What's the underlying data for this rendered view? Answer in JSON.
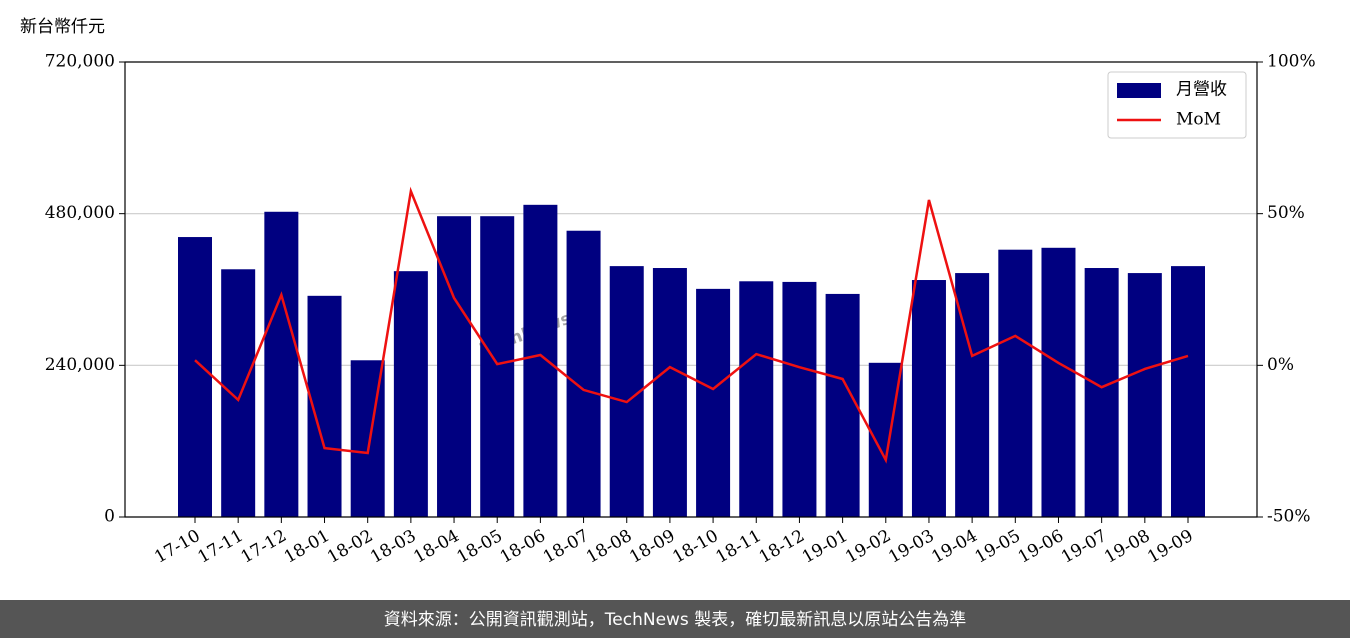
{
  "chart_data": {
    "type": "bar-line",
    "y_label": "新台幣仟元",
    "watermark": "TechNews",
    "footer": "資料來源：公開資訊觀測站，TechNews 製表，確切最新訊息以原站公告為準",
    "categories": [
      "17-10",
      "17-11",
      "17-12",
      "18-01",
      "18-02",
      "18-03",
      "18-04",
      "18-05",
      "18-06",
      "18-07",
      "18-08",
      "18-09",
      "18-10",
      "18-11",
      "18-12",
      "19-01",
      "19-02",
      "19-03",
      "19-04",
      "19-05",
      "19-06",
      "19-07",
      "19-08",
      "19-09"
    ],
    "series": [
      {
        "name": "月營收",
        "type": "bar",
        "color": "#000080",
        "values": [
          443000,
          392000,
          483000,
          350000,
          248000,
          389000,
          476000,
          476000,
          494000,
          453000,
          397000,
          394000,
          361000,
          373000,
          372000,
          353000,
          244000,
          375000,
          386000,
          423000,
          426000,
          394000,
          386000,
          397000
        ]
      },
      {
        "name": "MoM",
        "type": "line",
        "axis": "y2",
        "color": "#ee1111",
        "values": [
          1.7,
          -11.4,
          23.2,
          -27.3,
          -28.9,
          57.4,
          22.2,
          0.4,
          3.4,
          -8.1,
          -12.1,
          -0.6,
          -7.8,
          3.7,
          -0.6,
          -4.5,
          -31.2,
          54.5,
          3.1,
          9.7,
          0.8,
          -7.2,
          -1.2,
          3.1
        ]
      }
    ],
    "ylim": [
      0,
      720000
    ],
    "yticks": [
      {
        "value": 0,
        "label": "0"
      },
      {
        "value": 240000,
        "label": "240,000"
      },
      {
        "value": 480000,
        "label": "480,000"
      },
      {
        "value": 720000,
        "label": "720,000"
      }
    ],
    "y2lim": [
      -50,
      100
    ],
    "y2ticks": [
      {
        "value": -50,
        "label": "-50%"
      },
      {
        "value": 0,
        "label": "0%"
      },
      {
        "value": 50,
        "label": "50%"
      },
      {
        "value": 100,
        "label": "100%"
      }
    ],
    "grid": true,
    "legend": "upper right"
  }
}
